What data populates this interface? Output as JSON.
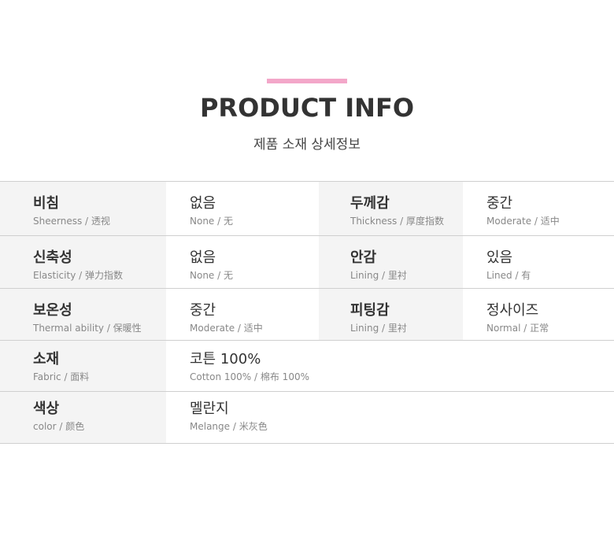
{
  "header": {
    "accent_color": "#f3a7c9",
    "title": "PRODUCT INFO",
    "subtitle": "제품 소재 상세정보"
  },
  "rows": [
    {
      "cells": [
        {
          "label": "비침",
          "sub": "Sheerness / 透视"
        },
        {
          "label": "없음",
          "sub": "None / 无"
        },
        {
          "label": "두께감",
          "sub": "Thickness / 厚度指数"
        },
        {
          "label": "중간",
          "sub": "Moderate / 适中"
        }
      ]
    },
    {
      "cells": [
        {
          "label": "신축성",
          "sub": "Elasticity / 弹力指数"
        },
        {
          "label": "없음",
          "sub": "None / 无"
        },
        {
          "label": "안감",
          "sub": "Lining / 里衬"
        },
        {
          "label": "있음",
          "sub": "Lined / 有"
        }
      ]
    },
    {
      "cells": [
        {
          "label": "보온성",
          "sub": "Thermal ability / 保暖性"
        },
        {
          "label": "중간",
          "sub": "Moderate / 适中"
        },
        {
          "label": "피팅감",
          "sub": "Lining / 里衬"
        },
        {
          "label": "정사이즈",
          "sub": "Normal / 正常"
        }
      ]
    },
    {
      "cells": [
        {
          "label": "소재",
          "sub": "Fabric / 面料"
        },
        {
          "label": "코튼 100%",
          "sub": "Cotton 100% / 棉布 100%"
        }
      ]
    },
    {
      "cells": [
        {
          "label": "색상",
          "sub": "color / 颜色"
        },
        {
          "label": "멜란지",
          "sub": "Melange / 米灰色"
        }
      ]
    }
  ]
}
